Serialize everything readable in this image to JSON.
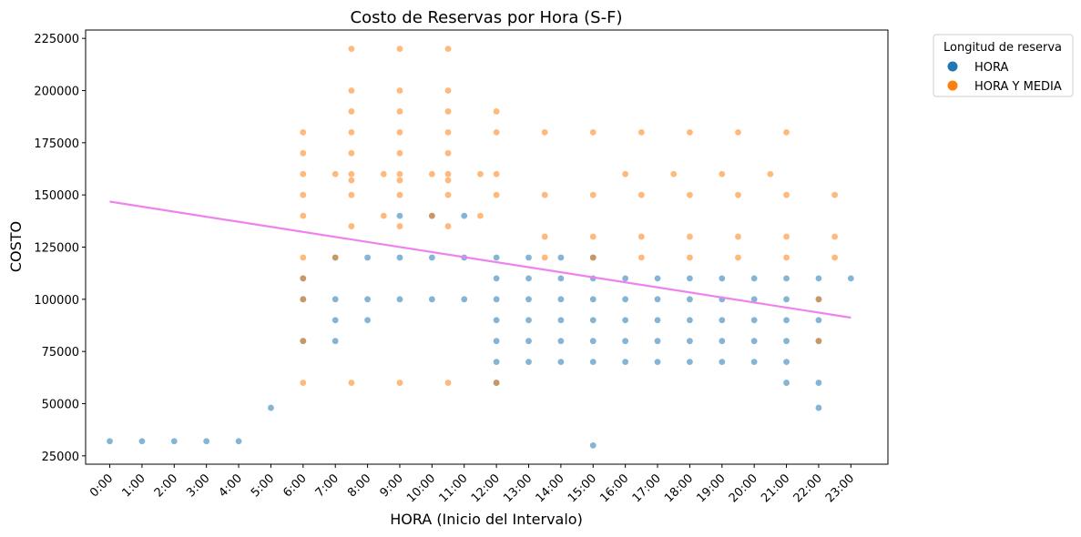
{
  "chart_data": {
    "type": "scatter",
    "title": "Costo de Reservas por Hora (S-F)",
    "xlabel": "HORA (Inicio del Intervalo)",
    "ylabel": "COSTO",
    "xlim": [
      -0.75,
      24.15
    ],
    "ylim": [
      21000,
      229000
    ],
    "x_ticks": [
      {
        "value": 0,
        "label": "0:00"
      },
      {
        "value": 1,
        "label": "1:00"
      },
      {
        "value": 2,
        "label": "2:00"
      },
      {
        "value": 3,
        "label": "3:00"
      },
      {
        "value": 4,
        "label": "4:00"
      },
      {
        "value": 5,
        "label": "5:00"
      },
      {
        "value": 6,
        "label": "6:00"
      },
      {
        "value": 7,
        "label": "7:00"
      },
      {
        "value": 8,
        "label": "8:00"
      },
      {
        "value": 9,
        "label": "9:00"
      },
      {
        "value": 10,
        "label": "10:00"
      },
      {
        "value": 11,
        "label": "11:00"
      },
      {
        "value": 12,
        "label": "12:00"
      },
      {
        "value": 13,
        "label": "13:00"
      },
      {
        "value": 14,
        "label": "14:00"
      },
      {
        "value": 15,
        "label": "15:00"
      },
      {
        "value": 16,
        "label": "16:00"
      },
      {
        "value": 17,
        "label": "17:00"
      },
      {
        "value": 18,
        "label": "18:00"
      },
      {
        "value": 19,
        "label": "19:00"
      },
      {
        "value": 20,
        "label": "20:00"
      },
      {
        "value": 21,
        "label": "21:00"
      },
      {
        "value": 22,
        "label": "22:00"
      },
      {
        "value": 23,
        "label": "23:00"
      }
    ],
    "y_ticks": [
      {
        "value": 25000,
        "label": "25000"
      },
      {
        "value": 50000,
        "label": "50000"
      },
      {
        "value": 75000,
        "label": "75000"
      },
      {
        "value": 100000,
        "label": "100000"
      },
      {
        "value": 125000,
        "label": "125000"
      },
      {
        "value": 150000,
        "label": "150000"
      },
      {
        "value": 175000,
        "label": "175000"
      },
      {
        "value": 200000,
        "label": "200000"
      },
      {
        "value": 225000,
        "label": "225000"
      }
    ],
    "legend": {
      "title": "Longitud de reserva",
      "placement": "outside top-right",
      "entries": [
        {
          "label": "HORA",
          "color": "#1f77b4"
        },
        {
          "label": "HORA Y MEDIA",
          "color": "#ff7f0e"
        }
      ]
    },
    "series": [
      {
        "name": "HORA",
        "color": "#1f77b4",
        "points": [
          [
            0,
            32000
          ],
          [
            1,
            32000
          ],
          [
            2,
            32000
          ],
          [
            3,
            32000
          ],
          [
            4,
            32000
          ],
          [
            5,
            48000
          ],
          [
            6,
            80000
          ],
          [
            6,
            100000
          ],
          [
            6,
            110000
          ],
          [
            7,
            80000
          ],
          [
            7,
            90000
          ],
          [
            7,
            100000
          ],
          [
            7,
            120000
          ],
          [
            8,
            90000
          ],
          [
            8,
            100000
          ],
          [
            8,
            120000
          ],
          [
            9,
            100000
          ],
          [
            9,
            120000
          ],
          [
            9,
            140000
          ],
          [
            10,
            100000
          ],
          [
            10,
            120000
          ],
          [
            10,
            140000
          ],
          [
            11,
            100000
          ],
          [
            11,
            120000
          ],
          [
            11,
            140000
          ],
          [
            12,
            60000
          ],
          [
            12,
            70000
          ],
          [
            12,
            80000
          ],
          [
            12,
            90000
          ],
          [
            12,
            100000
          ],
          [
            12,
            110000
          ],
          [
            12,
            120000
          ],
          [
            13,
            70000
          ],
          [
            13,
            80000
          ],
          [
            13,
            90000
          ],
          [
            13,
            100000
          ],
          [
            13,
            110000
          ],
          [
            13,
            120000
          ],
          [
            14,
            70000
          ],
          [
            14,
            80000
          ],
          [
            14,
            90000
          ],
          [
            14,
            100000
          ],
          [
            14,
            110000
          ],
          [
            14,
            120000
          ],
          [
            15,
            30000
          ],
          [
            15,
            70000
          ],
          [
            15,
            80000
          ],
          [
            15,
            90000
          ],
          [
            15,
            100000
          ],
          [
            15,
            110000
          ],
          [
            15,
            120000
          ],
          [
            16,
            70000
          ],
          [
            16,
            80000
          ],
          [
            16,
            90000
          ],
          [
            16,
            100000
          ],
          [
            16,
            110000
          ],
          [
            17,
            70000
          ],
          [
            17,
            80000
          ],
          [
            17,
            90000
          ],
          [
            17,
            100000
          ],
          [
            17,
            110000
          ],
          [
            18,
            70000
          ],
          [
            18,
            80000
          ],
          [
            18,
            90000
          ],
          [
            18,
            100000
          ],
          [
            18,
            110000
          ],
          [
            19,
            70000
          ],
          [
            19,
            80000
          ],
          [
            19,
            90000
          ],
          [
            19,
            100000
          ],
          [
            19,
            110000
          ],
          [
            20,
            70000
          ],
          [
            20,
            80000
          ],
          [
            20,
            90000
          ],
          [
            20,
            100000
          ],
          [
            20,
            110000
          ],
          [
            21,
            60000
          ],
          [
            21,
            70000
          ],
          [
            21,
            80000
          ],
          [
            21,
            90000
          ],
          [
            21,
            100000
          ],
          [
            21,
            110000
          ],
          [
            22,
            48000
          ],
          [
            22,
            60000
          ],
          [
            22,
            80000
          ],
          [
            22,
            90000
          ],
          [
            22,
            100000
          ],
          [
            22,
            110000
          ],
          [
            23,
            110000
          ]
        ]
      },
      {
        "name": "HORA Y MEDIA",
        "color": "#ff7f0e",
        "points": [
          [
            6,
            60000
          ],
          [
            6,
            80000
          ],
          [
            6,
            100000
          ],
          [
            6,
            110000
          ],
          [
            6,
            120000
          ],
          [
            6,
            140000
          ],
          [
            6,
            150000
          ],
          [
            6,
            160000
          ],
          [
            6,
            170000
          ],
          [
            6,
            180000
          ],
          [
            7,
            120000
          ],
          [
            7,
            160000
          ],
          [
            7.5,
            60000
          ],
          [
            7.5,
            135000
          ],
          [
            7.5,
            150000
          ],
          [
            7.5,
            157000
          ],
          [
            7.5,
            160000
          ],
          [
            7.5,
            170000
          ],
          [
            7.5,
            180000
          ],
          [
            7.5,
            190000
          ],
          [
            7.5,
            200000
          ],
          [
            7.5,
            220000
          ],
          [
            8.5,
            140000
          ],
          [
            8.5,
            160000
          ],
          [
            9,
            60000
          ],
          [
            9,
            135000
          ],
          [
            9,
            150000
          ],
          [
            9,
            157000
          ],
          [
            9,
            160000
          ],
          [
            9,
            170000
          ],
          [
            9,
            180000
          ],
          [
            9,
            190000
          ],
          [
            9,
            200000
          ],
          [
            9,
            220000
          ],
          [
            10,
            140000
          ],
          [
            10,
            160000
          ],
          [
            10.5,
            60000
          ],
          [
            10.5,
            135000
          ],
          [
            10.5,
            150000
          ],
          [
            10.5,
            157000
          ],
          [
            10.5,
            160000
          ],
          [
            10.5,
            170000
          ],
          [
            10.5,
            180000
          ],
          [
            10.5,
            190000
          ],
          [
            10.5,
            200000
          ],
          [
            10.5,
            220000
          ],
          [
            11.5,
            140000
          ],
          [
            11.5,
            160000
          ],
          [
            12,
            60000
          ],
          [
            12,
            150000
          ],
          [
            12,
            160000
          ],
          [
            12,
            180000
          ],
          [
            12,
            190000
          ],
          [
            13.5,
            120000
          ],
          [
            13.5,
            130000
          ],
          [
            13.5,
            150000
          ],
          [
            13.5,
            180000
          ],
          [
            15,
            120000
          ],
          [
            15,
            130000
          ],
          [
            15,
            150000
          ],
          [
            15,
            180000
          ],
          [
            16,
            160000
          ],
          [
            16.5,
            120000
          ],
          [
            16.5,
            130000
          ],
          [
            16.5,
            150000
          ],
          [
            16.5,
            180000
          ],
          [
            17.5,
            160000
          ],
          [
            18,
            120000
          ],
          [
            18,
            130000
          ],
          [
            18,
            150000
          ],
          [
            18,
            180000
          ],
          [
            19,
            160000
          ],
          [
            19.5,
            120000
          ],
          [
            19.5,
            130000
          ],
          [
            19.5,
            150000
          ],
          [
            19.5,
            180000
          ],
          [
            20.5,
            160000
          ],
          [
            21,
            120000
          ],
          [
            21,
            130000
          ],
          [
            21,
            150000
          ],
          [
            21,
            180000
          ],
          [
            22,
            80000
          ],
          [
            22,
            100000
          ],
          [
            22.5,
            120000
          ],
          [
            22.5,
            130000
          ],
          [
            22.5,
            150000
          ]
        ]
      }
    ],
    "trendline": {
      "color": "#ee82ee",
      "x": [
        0,
        23
      ],
      "y": [
        146800,
        91200
      ]
    }
  }
}
